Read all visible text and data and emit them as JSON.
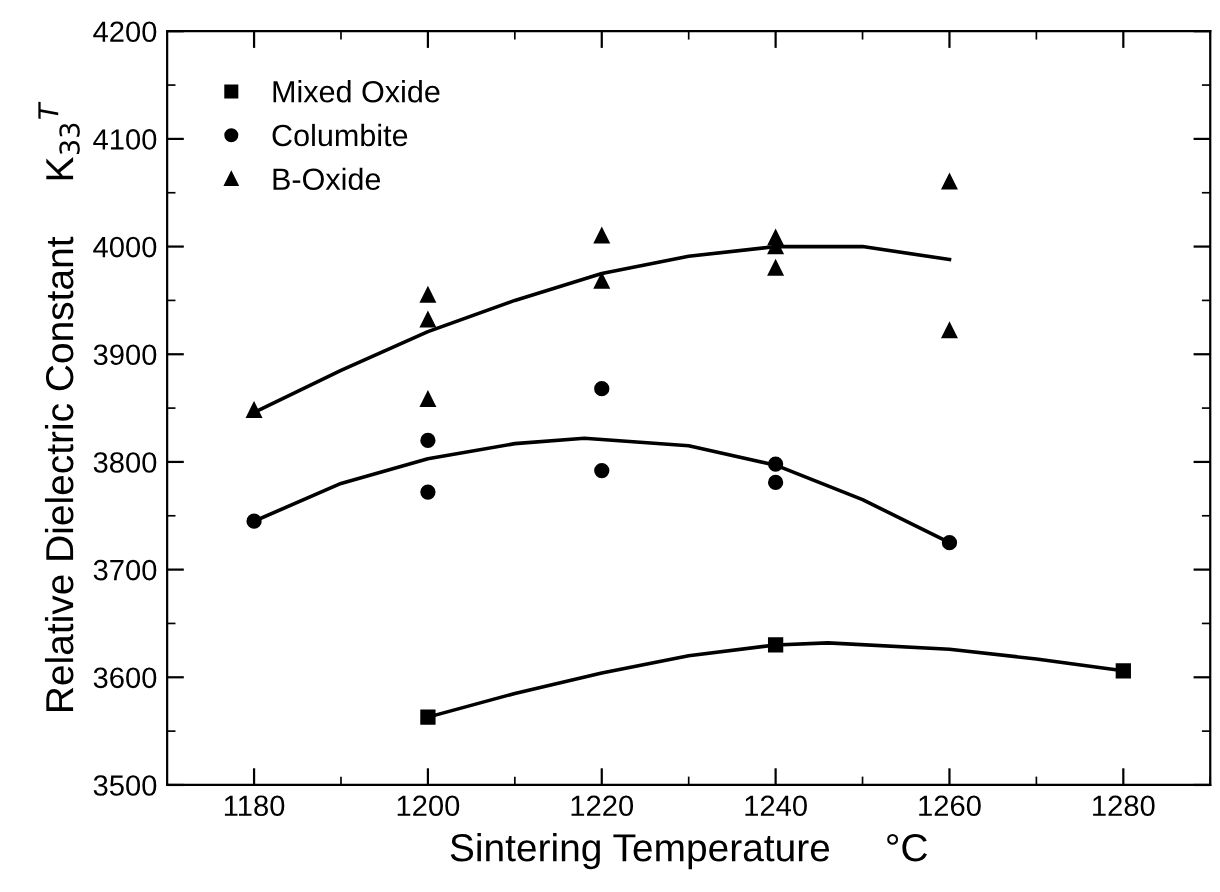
{
  "chart_data": {
    "type": "scatter",
    "xlabel": "Sintering Temperature     °C",
    "ylabel": "Relative Dielectric Constant     K$_{33}$$^{T}$",
    "xlim": [
      1170,
      1290
    ],
    "xticks": [
      1180,
      1200,
      1220,
      1240,
      1260,
      1280
    ],
    "ylim": [
      3500,
      4200
    ],
    "yticks": [
      3500,
      3600,
      3700,
      3800,
      3900,
      4000,
      4100,
      4200
    ],
    "grid": false,
    "legend": "top left",
    "series": [
      {
        "name": "Mixed Oxide",
        "marker": "square",
        "color": "#000000",
        "x": [
          1200,
          1240,
          1280
        ],
        "values": [
          3563,
          3630,
          3606
        ]
      },
      {
        "name": "Columbite",
        "marker": "circle",
        "color": "#000000",
        "x": [
          1180,
          1200,
          1200,
          1220,
          1220,
          1240,
          1240,
          1260
        ],
        "values": [
          3745,
          3820,
          3772,
          3792,
          3868,
          3798,
          3781,
          3725
        ]
      },
      {
        "name": "B-Oxide",
        "marker": "triangle",
        "color": "#000000",
        "x": [
          1180,
          1200,
          1200,
          1200,
          1220,
          1220,
          1240,
          1240,
          1240,
          1260,
          1260
        ],
        "values": [
          3848,
          3955,
          3932,
          3858,
          4010,
          3968,
          4008,
          4000,
          3980,
          4060,
          3922
        ]
      },
      {
        "type": "line",
        "marker": "none",
        "line_style": "solid",
        "color": "#000000",
        "x": [
          1200,
          1210,
          1220,
          1230,
          1240,
          1246,
          1260,
          1270,
          1280
        ],
        "values": [
          3563,
          3585,
          3604,
          3620,
          3630,
          3632,
          3626,
          3617,
          3606
        ]
      },
      {
        "type": "line",
        "marker": "none",
        "line_style": "solid",
        "color": "#000000",
        "x": [
          1180,
          1190,
          1200,
          1210,
          1218,
          1230,
          1240,
          1250,
          1260
        ],
        "values": [
          3745,
          3780,
          3803,
          3817,
          3822,
          3815,
          3797,
          3765,
          3725
        ]
      },
      {
        "type": "line",
        "marker": "none",
        "line_style": "solid",
        "color": "#000000",
        "x": [
          1180,
          1190,
          1200,
          1210,
          1220,
          1230,
          1240,
          1250,
          1260
        ],
        "values": [
          3846,
          3885,
          3921,
          3950,
          3975,
          3991,
          4000,
          4000,
          3988
        ]
      }
    ]
  }
}
